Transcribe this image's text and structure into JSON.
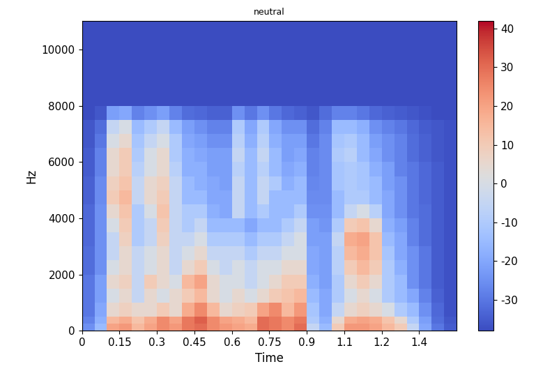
{
  "chart_data": {
    "type": "heatmap",
    "title": "neutral",
    "x_label": "Time",
    "y_label": "Hz",
    "xlim": [
      0,
      1.5
    ],
    "ylim": [
      0,
      11025
    ],
    "xticks": [
      0,
      0.15,
      0.3,
      0.45,
      0.6,
      0.75,
      0.9,
      {
        "value": 1.05,
        "label": "1.1"
      },
      1.2,
      {
        "value": 1.35,
        "label": "1.4"
      }
    ],
    "yticks": [
      0,
      2000,
      4000,
      6000,
      8000,
      10000
    ],
    "x_edges": [
      0,
      0.05,
      0.1,
      0.15,
      0.2,
      0.25,
      0.3,
      0.35,
      0.4,
      0.45,
      0.5,
      0.55,
      0.6,
      0.65,
      0.7,
      0.75,
      0.8,
      0.85,
      0.9,
      0.95,
      1.0,
      1.05,
      1.1,
      1.15,
      1.2,
      1.25,
      1.3,
      1.35,
      1.4,
      1.45,
      1.5
    ],
    "y_edges": [
      0,
      250,
      500,
      1000,
      1500,
      2000,
      2500,
      3000,
      3500,
      4000,
      4500,
      5000,
      5500,
      6000,
      6500,
      7000,
      7500,
      8000,
      11025
    ],
    "cells": [
      [
        -25,
        -15,
        20,
        22,
        15,
        20,
        25,
        22,
        28,
        30,
        25,
        22,
        20,
        18,
        30,
        28,
        25,
        30,
        -5,
        -15,
        10,
        22,
        22,
        20,
        15,
        10,
        -5,
        -20,
        -30,
        -35
      ],
      [
        -28,
        -18,
        15,
        18,
        12,
        18,
        25,
        20,
        28,
        32,
        25,
        20,
        18,
        15,
        30,
        28,
        25,
        28,
        -10,
        -18,
        5,
        18,
        20,
        18,
        12,
        5,
        -10,
        -22,
        -32,
        -36
      ],
      [
        -30,
        -20,
        5,
        8,
        5,
        5,
        10,
        5,
        18,
        25,
        15,
        5,
        8,
        10,
        20,
        25,
        15,
        22,
        -12,
        -20,
        -5,
        5,
        8,
        5,
        0,
        -10,
        -15,
        -25,
        -33,
        -37
      ],
      [
        -30,
        -22,
        0,
        5,
        -5,
        5,
        0,
        5,
        10,
        15,
        5,
        0,
        5,
        0,
        5,
        10,
        12,
        15,
        -15,
        -20,
        -10,
        0,
        5,
        0,
        -10,
        -15,
        -20,
        -28,
        -34,
        -37
      ],
      [
        -30,
        -22,
        5,
        8,
        -5,
        10,
        5,
        0,
        15,
        20,
        5,
        0,
        0,
        -5,
        0,
        5,
        10,
        10,
        -18,
        -22,
        -10,
        5,
        10,
        5,
        -10,
        -15,
        -25,
        -30,
        -35,
        -37
      ],
      [
        -32,
        -25,
        0,
        5,
        -5,
        0,
        5,
        -5,
        5,
        10,
        0,
        -5,
        0,
        -5,
        0,
        0,
        5,
        5,
        -20,
        -22,
        -8,
        10,
        15,
        10,
        -10,
        -18,
        -25,
        -30,
        -35,
        -37
      ],
      [
        -32,
        -25,
        -5,
        5,
        -5,
        0,
        5,
        -5,
        0,
        5,
        -5,
        -5,
        -5,
        -10,
        -5,
        -5,
        0,
        0,
        -20,
        -22,
        -8,
        15,
        18,
        12,
        -12,
        -20,
        -25,
        -30,
        -35,
        -37
      ],
      [
        -33,
        -25,
        -5,
        8,
        -10,
        -5,
        8,
        -5,
        -5,
        0,
        -10,
        -10,
        -10,
        -15,
        -10,
        -10,
        -5,
        0,
        -22,
        -22,
        -5,
        18,
        20,
        12,
        -15,
        -20,
        -28,
        -32,
        -35,
        -37
      ],
      [
        -33,
        -25,
        0,
        10,
        -10,
        -5,
        10,
        -5,
        -10,
        -5,
        -15,
        -15,
        -15,
        -20,
        -15,
        -15,
        -10,
        -5,
        -22,
        -24,
        -10,
        10,
        12,
        5,
        -18,
        -22,
        -28,
        -32,
        -35,
        -37
      ],
      [
        -33,
        -25,
        5,
        12,
        -10,
        0,
        12,
        -5,
        -10,
        -10,
        -18,
        -20,
        -5,
        -15,
        -10,
        -15,
        -15,
        -10,
        -25,
        -25,
        -15,
        -5,
        0,
        -8,
        -20,
        -25,
        -30,
        -32,
        -35,
        -37
      ],
      [
        -34,
        -26,
        10,
        15,
        -5,
        5,
        10,
        -5,
        -15,
        -15,
        -20,
        -20,
        -5,
        -15,
        -5,
        -15,
        -15,
        -15,
        -26,
        -26,
        -15,
        -10,
        -10,
        -15,
        -20,
        -25,
        -30,
        -33,
        -35,
        -37
      ],
      [
        -34,
        -26,
        8,
        12,
        -5,
        5,
        8,
        -5,
        -15,
        -18,
        -20,
        -22,
        -5,
        -15,
        -5,
        -10,
        -18,
        -15,
        -27,
        -26,
        -12,
        -10,
        -12,
        -15,
        -22,
        -25,
        -30,
        -33,
        -35,
        -37
      ],
      [
        -35,
        -28,
        5,
        10,
        -8,
        0,
        5,
        -8,
        -18,
        -18,
        -22,
        -22,
        -8,
        -15,
        -8,
        -15,
        -20,
        -18,
        -28,
        -26,
        -12,
        -10,
        -12,
        -18,
        -22,
        -28,
        -30,
        -33,
        -35,
        -37
      ],
      [
        -35,
        -28,
        5,
        10,
        -10,
        0,
        5,
        -10,
        -18,
        -20,
        -22,
        -22,
        -5,
        -15,
        -5,
        -15,
        -22,
        -20,
        -28,
        -26,
        -10,
        -8,
        -15,
        -20,
        -25,
        -28,
        -32,
        -34,
        -36,
        -37
      ],
      [
        -36,
        -30,
        0,
        5,
        -12,
        -5,
        0,
        -10,
        -20,
        -22,
        -25,
        -25,
        -8,
        -18,
        -8,
        -18,
        -22,
        -22,
        -30,
        -26,
        -12,
        -10,
        -15,
        -22,
        -25,
        -28,
        -32,
        -34,
        -36,
        -37
      ],
      [
        -36,
        -32,
        -5,
        0,
        -15,
        -10,
        -5,
        -15,
        -22,
        -25,
        -28,
        -28,
        -10,
        -20,
        -10,
        -20,
        -25,
        -25,
        -32,
        -28,
        -15,
        -15,
        -18,
        -25,
        -28,
        -30,
        -33,
        -35,
        -36,
        -37
      ],
      [
        -38,
        -36,
        -22,
        -20,
        -28,
        -25,
        -22,
        -28,
        -32,
        -33,
        -34,
        -34,
        -25,
        -30,
        -25,
        -30,
        -33,
        -34,
        -36,
        -32,
        -28,
        -28,
        -30,
        -33,
        -34,
        -35,
        -36,
        -37,
        -38,
        -38
      ],
      [
        -38,
        -38,
        -38,
        -38,
        -38,
        -38,
        -38,
        -38,
        -38,
        -38,
        -38,
        -38,
        -38,
        -38,
        -38,
        -38,
        -38,
        -38,
        -38,
        -38,
        -38,
        -38,
        -38,
        -38,
        -38,
        -38,
        -38,
        -38,
        -38,
        -38
      ]
    ],
    "colorbar_range": [
      -38,
      42
    ],
    "colorbar_ticks": [
      -30,
      -20,
      -10,
      0,
      10,
      20,
      30,
      40
    ]
  }
}
